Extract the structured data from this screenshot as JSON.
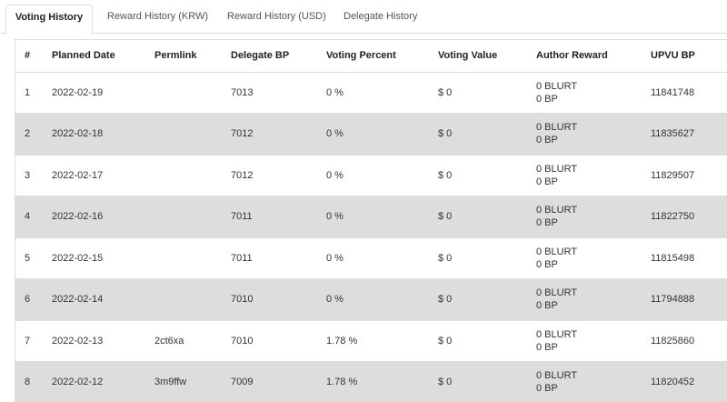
{
  "tabs": [
    {
      "label": "Voting History",
      "active": true
    },
    {
      "label": "Reward History (KRW)",
      "active": false
    },
    {
      "label": "Reward History (USD)",
      "active": false
    },
    {
      "label": "Delegate History",
      "active": false
    }
  ],
  "table": {
    "headers": [
      "#",
      "Planned Date",
      "Permlink",
      "Delegate BP",
      "Voting Percent",
      "Voting Value",
      "Author Reward",
      "UPVU BP"
    ],
    "rows": [
      {
        "num": "1",
        "date": "2022-02-19",
        "permlink": "",
        "delegate_bp": "7013",
        "voting_percent": "0 %",
        "voting_value": "$ 0",
        "reward_blurt": "0 BLURT",
        "reward_bp": "0 BP",
        "upvu_bp": "11841748"
      },
      {
        "num": "2",
        "date": "2022-02-18",
        "permlink": "",
        "delegate_bp": "7012",
        "voting_percent": "0 %",
        "voting_value": "$ 0",
        "reward_blurt": "0 BLURT",
        "reward_bp": "0 BP",
        "upvu_bp": "11835627"
      },
      {
        "num": "3",
        "date": "2022-02-17",
        "permlink": "",
        "delegate_bp": "7012",
        "voting_percent": "0 %",
        "voting_value": "$ 0",
        "reward_blurt": "0 BLURT",
        "reward_bp": "0 BP",
        "upvu_bp": "11829507"
      },
      {
        "num": "4",
        "date": "2022-02-16",
        "permlink": "",
        "delegate_bp": "7011",
        "voting_percent": "0 %",
        "voting_value": "$ 0",
        "reward_blurt": "0 BLURT",
        "reward_bp": "0 BP",
        "upvu_bp": "11822750"
      },
      {
        "num": "5",
        "date": "2022-02-15",
        "permlink": "",
        "delegate_bp": "7011",
        "voting_percent": "0 %",
        "voting_value": "$ 0",
        "reward_blurt": "0 BLURT",
        "reward_bp": "0 BP",
        "upvu_bp": "11815498"
      },
      {
        "num": "6",
        "date": "2022-02-14",
        "permlink": "",
        "delegate_bp": "7010",
        "voting_percent": "0 %",
        "voting_value": "$ 0",
        "reward_blurt": "0 BLURT",
        "reward_bp": "0 BP",
        "upvu_bp": "11794888"
      },
      {
        "num": "7",
        "date": "2022-02-13",
        "permlink": "2ct6xa",
        "delegate_bp": "7010",
        "voting_percent": "1.78 %",
        "voting_value": "$ 0",
        "reward_blurt": "0 BLURT",
        "reward_bp": "0 BP",
        "upvu_bp": "11825860"
      },
      {
        "num": "8",
        "date": "2022-02-12",
        "permlink": "3m9ffw",
        "delegate_bp": "7009",
        "voting_percent": "1.78 %",
        "voting_value": "$ 0",
        "reward_blurt": "0 BLURT",
        "reward_bp": "0 BP",
        "upvu_bp": "11820452"
      }
    ]
  }
}
